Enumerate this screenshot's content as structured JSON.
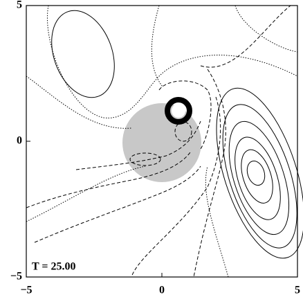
{
  "chart_data": {
    "type": "contour",
    "annotation": "T = 25.00",
    "xlim": [
      -5,
      5
    ],
    "ylim": [
      -5,
      5
    ],
    "xticks": [
      {
        "value": -5,
        "label": "−5"
      },
      0,
      5
    ],
    "yticks": [
      {
        "value": -5,
        "label": "−5"
      },
      0,
      5
    ]
  }
}
